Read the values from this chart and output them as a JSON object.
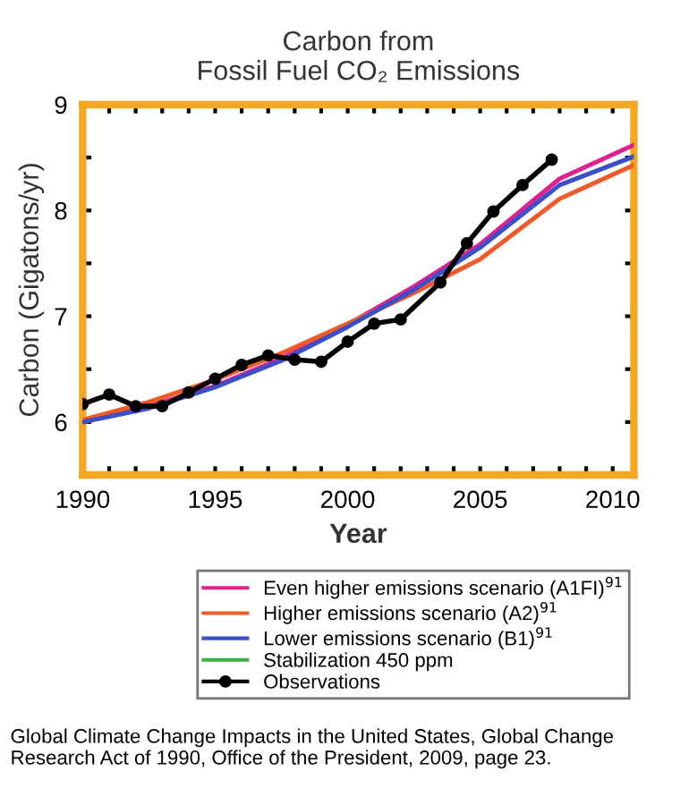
{
  "chart_data": {
    "type": "line",
    "title": "Carbon from\nFossil Fuel CO₂ Emissions",
    "xlabel": "Year",
    "ylabel": "Carbon (Gigatons/yr)",
    "xlim": [
      1990,
      2010.8
    ],
    "ylim": [
      5.5,
      9
    ],
    "xticks": [
      1990,
      {
        "value": 1991,
        "label": null
      },
      {
        "value": 1992,
        "label": null
      },
      {
        "value": 1993,
        "label": null
      },
      {
        "value": 1994,
        "label": null
      },
      1995,
      {
        "value": 1996,
        "label": null
      },
      {
        "value": 1997,
        "label": null
      },
      {
        "value": 1998,
        "label": null
      },
      {
        "value": 1999,
        "label": null
      },
      2000,
      {
        "value": 2001,
        "label": null
      },
      {
        "value": 2002,
        "label": null
      },
      {
        "value": 2003,
        "label": null
      },
      {
        "value": 2004,
        "label": null
      },
      2005,
      {
        "value": 2006,
        "label": null
      },
      {
        "value": 2007,
        "label": null
      },
      {
        "value": 2008,
        "label": null
      },
      {
        "value": 2009,
        "label": null
      },
      2010
    ],
    "yticks": [
      {
        "value": 5.5,
        "label": null
      },
      6,
      {
        "value": 6.5,
        "label": null
      },
      7,
      {
        "value": 7.5,
        "label": null
      },
      8,
      {
        "value": 8.5,
        "label": null
      },
      9
    ],
    "grid": false,
    "legend": "bottom",
    "marker": "none",
    "line_style": "solid",
    "series": [
      {
        "name": "Even higher emissions scenario (A1FI)$^{91}$",
        "color": "#e0208c",
        "x": [
          1990,
          1992.5,
          1995,
          1997.5,
          2000,
          2002.5,
          2005,
          2008,
          2010.8
        ],
        "values": [
          6.0,
          6.15,
          6.34,
          6.6,
          6.92,
          7.28,
          7.68,
          8.3,
          8.62
        ]
      },
      {
        "name": "Higher emissions scenario (A2)$^{91}$",
        "color": "#f05a28",
        "x": [
          1990,
          1992.5,
          1995,
          1997.5,
          2000,
          2002.5,
          2005,
          2008,
          2010.8
        ],
        "values": [
          6.02,
          6.19,
          6.4,
          6.65,
          6.93,
          7.22,
          7.54,
          8.11,
          8.43
        ]
      },
      {
        "name": "Lower emissions scenario (B1)$^{91}$",
        "color": "#3a4fc8",
        "x": [
          1990,
          1992.5,
          1995,
          1997.5,
          2000,
          2002.5,
          2005,
          2008,
          2010.8
        ],
        "values": [
          6.0,
          6.13,
          6.33,
          6.58,
          6.9,
          7.25,
          7.65,
          8.24,
          8.51
        ]
      },
      {
        "name": "Stabilization 450 ppm",
        "color": "#3cb043"
      },
      {
        "name": "Observations",
        "color": "#000000",
        "marker": "circle",
        "x": [
          1990,
          1991,
          1992,
          1993,
          1994,
          1995,
          1996,
          1997,
          1998,
          1999,
          2000,
          2001,
          2002,
          2003.5,
          2004.5,
          2005.5,
          2006.6,
          2007.7
        ],
        "values": [
          6.17,
          6.26,
          6.15,
          6.15,
          6.28,
          6.41,
          6.54,
          6.63,
          6.59,
          6.57,
          6.76,
          6.93,
          6.97,
          7.32,
          7.69,
          7.99,
          8.24,
          8.48
        ]
      }
    ],
    "annotations": [
      "Global Climate Change Impacts in the United States, Global Change Research Act of 1990, Office of the President, 2009, page 23."
    ]
  }
}
